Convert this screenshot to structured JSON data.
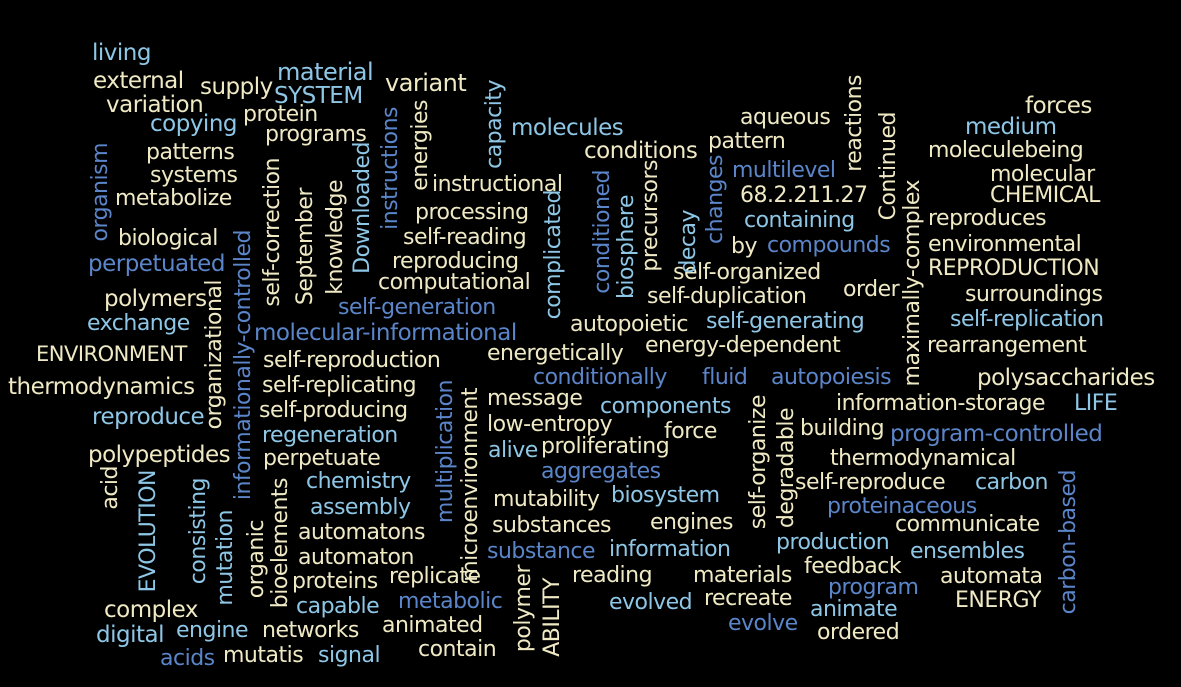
{
  "colors": {
    "background": "#000000",
    "cream": "#efe9c4",
    "lightblue": "#8ec6e6",
    "blue": "#5b85c9"
  },
  "words": [
    {
      "t": "living",
      "c": "lightblue"
    },
    {
      "t": "external",
      "c": "cream"
    },
    {
      "t": "material",
      "c": "lightblue"
    },
    {
      "t": "supply",
      "c": "cream"
    },
    {
      "t": "variant",
      "c": "cream"
    },
    {
      "t": "SYSTEM",
      "c": "lightblue"
    },
    {
      "t": "variation",
      "c": "cream"
    },
    {
      "t": "copying",
      "c": "lightblue"
    },
    {
      "t": "protein",
      "c": "cream"
    },
    {
      "t": "programs",
      "c": "cream"
    },
    {
      "t": "patterns",
      "c": "cream"
    },
    {
      "t": "systems",
      "c": "cream"
    },
    {
      "t": "metabolize",
      "c": "cream"
    },
    {
      "t": "biological",
      "c": "cream"
    },
    {
      "t": "perpetuated",
      "c": "blue"
    },
    {
      "t": "polymers",
      "c": "cream"
    },
    {
      "t": "exchange",
      "c": "lightblue"
    },
    {
      "t": "ENVIRONMENT",
      "c": "cream"
    },
    {
      "t": "thermodynamics",
      "c": "cream"
    },
    {
      "t": "reproduce",
      "c": "lightblue"
    },
    {
      "t": "polypeptides",
      "c": "cream"
    },
    {
      "t": "complex",
      "c": "cream"
    },
    {
      "t": "digital",
      "c": "lightblue"
    },
    {
      "t": "acids",
      "c": "blue"
    },
    {
      "t": "engine",
      "c": "lightblue"
    },
    {
      "t": "networks",
      "c": "cream"
    },
    {
      "t": "mutatis",
      "c": "cream"
    },
    {
      "t": "signal",
      "c": "lightblue"
    },
    {
      "t": "animated",
      "c": "cream"
    },
    {
      "t": "contain",
      "c": "cream"
    },
    {
      "t": "capable",
      "c": "lightblue"
    },
    {
      "t": "metabolic",
      "c": "blue"
    },
    {
      "t": "proteins",
      "c": "cream"
    },
    {
      "t": "replicate",
      "c": "cream"
    },
    {
      "t": "automaton",
      "c": "cream"
    },
    {
      "t": "automatons",
      "c": "cream"
    },
    {
      "t": "assembly",
      "c": "lightblue"
    },
    {
      "t": "chemistry",
      "c": "lightblue"
    },
    {
      "t": "perpetuate",
      "c": "cream"
    },
    {
      "t": "regeneration",
      "c": "lightblue"
    },
    {
      "t": "self-producing",
      "c": "cream"
    },
    {
      "t": "self-replicating",
      "c": "cream"
    },
    {
      "t": "self-reproduction",
      "c": "cream"
    },
    {
      "t": "molecular-informational",
      "c": "blue"
    },
    {
      "t": "self-generation",
      "c": "blue"
    },
    {
      "t": "computational",
      "c": "cream"
    },
    {
      "t": "reproducing",
      "c": "cream"
    },
    {
      "t": "self-reading",
      "c": "cream"
    },
    {
      "t": "processing",
      "c": "cream"
    },
    {
      "t": "instructional",
      "c": "cream"
    },
    {
      "t": "molecules",
      "c": "lightblue"
    },
    {
      "t": "conditions",
      "c": "cream"
    },
    {
      "t": "pattern",
      "c": "cream"
    },
    {
      "t": "aqueous",
      "c": "cream"
    },
    {
      "t": "forces",
      "c": "cream"
    },
    {
      "t": "medium",
      "c": "lightblue"
    },
    {
      "t": "moleculebeing",
      "c": "cream"
    },
    {
      "t": "molecular",
      "c": "cream"
    },
    {
      "t": "CHEMICAL",
      "c": "cream"
    },
    {
      "t": "reproduces",
      "c": "cream"
    },
    {
      "t": "environmental",
      "c": "cream"
    },
    {
      "t": "REPRODUCTION",
      "c": "cream"
    },
    {
      "t": "surroundings",
      "c": "cream"
    },
    {
      "t": "self-replication",
      "c": "lightblue"
    },
    {
      "t": "rearrangement",
      "c": "cream"
    },
    {
      "t": "polysaccharides",
      "c": "cream"
    },
    {
      "t": "LIFE",
      "c": "lightblue"
    },
    {
      "t": "information-storage",
      "c": "cream"
    },
    {
      "t": "program-controlled",
      "c": "blue"
    },
    {
      "t": "building",
      "c": "cream"
    },
    {
      "t": "thermodynamical",
      "c": "cream"
    },
    {
      "t": "carbon",
      "c": "lightblue"
    },
    {
      "t": "self-reproduce",
      "c": "cream"
    },
    {
      "t": "proteinaceous",
      "c": "blue"
    },
    {
      "t": "communicate",
      "c": "cream"
    },
    {
      "t": "ensembles",
      "c": "lightblue"
    },
    {
      "t": "production",
      "c": "lightblue"
    },
    {
      "t": "feedback",
      "c": "cream"
    },
    {
      "t": "automata",
      "c": "cream"
    },
    {
      "t": "program",
      "c": "blue"
    },
    {
      "t": "ENERGY",
      "c": "cream"
    },
    {
      "t": "animate",
      "c": "lightblue"
    },
    {
      "t": "evolve",
      "c": "blue"
    },
    {
      "t": "ordered",
      "c": "cream"
    },
    {
      "t": "recreate",
      "c": "cream"
    },
    {
      "t": "evolved",
      "c": "lightblue"
    },
    {
      "t": "materials",
      "c": "cream"
    },
    {
      "t": "reading",
      "c": "cream"
    },
    {
      "t": "information",
      "c": "lightblue"
    },
    {
      "t": "substance",
      "c": "blue"
    },
    {
      "t": "engines",
      "c": "cream"
    },
    {
      "t": "substances",
      "c": "cream"
    },
    {
      "t": "biosystem",
      "c": "lightblue"
    },
    {
      "t": "mutability",
      "c": "cream"
    },
    {
      "t": "aggregates",
      "c": "blue"
    },
    {
      "t": "proliferating",
      "c": "cream"
    },
    {
      "t": "alive",
      "c": "lightblue"
    },
    {
      "t": "force",
      "c": "cream"
    },
    {
      "t": "low-entropy",
      "c": "cream"
    },
    {
      "t": "components",
      "c": "lightblue"
    },
    {
      "t": "message",
      "c": "cream"
    },
    {
      "t": "conditionally",
      "c": "blue"
    },
    {
      "t": "fluid",
      "c": "blue"
    },
    {
      "t": "autopoiesis",
      "c": "blue"
    },
    {
      "t": "energetically",
      "c": "cream"
    },
    {
      "t": "energy-dependent",
      "c": "cream"
    },
    {
      "t": "autopoietic",
      "c": "cream"
    },
    {
      "t": "self-generating",
      "c": "lightblue"
    },
    {
      "t": "self-duplication",
      "c": "cream"
    },
    {
      "t": "order",
      "c": "cream"
    },
    {
      "t": "self-organized",
      "c": "cream"
    },
    {
      "t": "by",
      "c": "cream"
    },
    {
      "t": "compounds",
      "c": "blue"
    },
    {
      "t": "containing",
      "c": "lightblue"
    },
    {
      "t": "68.2.211.27",
      "c": "cream"
    },
    {
      "t": "multilevel",
      "c": "blue"
    },
    {
      "t": "organism",
      "c": "blue",
      "r": true
    },
    {
      "t": "informationally-controlled",
      "c": "blue",
      "r": true
    },
    {
      "t": "organizational",
      "c": "cream",
      "r": true
    },
    {
      "t": "self-correction",
      "c": "cream",
      "r": true
    },
    {
      "t": "September",
      "c": "cream",
      "r": true
    },
    {
      "t": "knowledge",
      "c": "cream",
      "r": true
    },
    {
      "t": "Downloaded",
      "c": "lightblue",
      "r": true
    },
    {
      "t": "instructions",
      "c": "blue",
      "r": true
    },
    {
      "t": "energies",
      "c": "cream",
      "r": true
    },
    {
      "t": "capacity",
      "c": "lightblue",
      "r": true
    },
    {
      "t": "complicated",
      "c": "lightblue",
      "r": true
    },
    {
      "t": "conditioned",
      "c": "blue",
      "r": true
    },
    {
      "t": "biosphere",
      "c": "lightblue",
      "r": true
    },
    {
      "t": "precursors",
      "c": "cream",
      "r": true
    },
    {
      "t": "decay",
      "c": "lightblue",
      "r": true
    },
    {
      "t": "changes",
      "c": "blue",
      "r": true
    },
    {
      "t": "reactions",
      "c": "cream",
      "r": true
    },
    {
      "t": "Continued",
      "c": "cream",
      "r": true
    },
    {
      "t": "maximally-complex",
      "c": "cream",
      "r": true
    },
    {
      "t": "acid",
      "c": "cream",
      "r": true
    },
    {
      "t": "EVOLUTION",
      "c": "lightblue",
      "r": true
    },
    {
      "t": "mutation",
      "c": "lightblue",
      "r": true
    },
    {
      "t": "consisting",
      "c": "lightblue",
      "r": true
    },
    {
      "t": "organic",
      "c": "cream",
      "r": true
    },
    {
      "t": "bioelements",
      "c": "cream",
      "r": true
    },
    {
      "t": "microenvironment",
      "c": "cream",
      "r": true
    },
    {
      "t": "multiplication",
      "c": "blue",
      "r": true
    },
    {
      "t": "polymer",
      "c": "cream",
      "r": true
    },
    {
      "t": "ABILITY",
      "c": "cream",
      "r": true
    },
    {
      "t": "degradable",
      "c": "cream",
      "r": true
    },
    {
      "t": "self-organize",
      "c": "cream",
      "r": true
    },
    {
      "t": "carbon-based",
      "c": "blue",
      "r": true
    }
  ]
}
